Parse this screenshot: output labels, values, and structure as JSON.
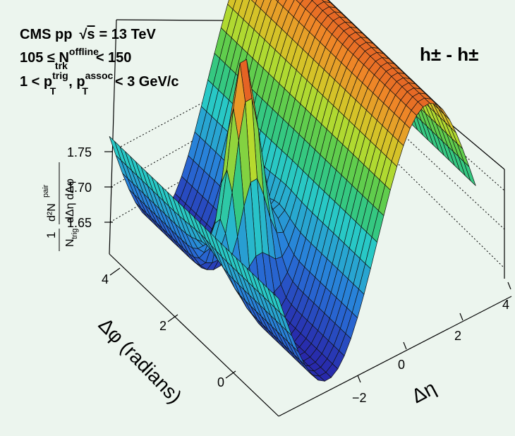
{
  "chart_data": {
    "type": "surface3d",
    "title": "",
    "experiment": "CMS pp",
    "energy": "= 13 TeV",
    "energy_sym": "s",
    "mult": {
      "lhs": "105 ≤ N",
      "sup": "offline",
      "sub": "trk",
      "rhs": "< 150"
    },
    "pt": {
      "lhs": "1 < p",
      "sup1": "trig",
      "sub1": "T",
      "sep": ", p",
      "sup2": "assoc",
      "sub2": "T",
      "rhs": "< 3 GeV/c"
    },
    "pair_label": "h± - h±",
    "zlabel": {
      "one": "1",
      "ntrig": "N",
      "ntrig_sub": "trig",
      "num": "d²N",
      "num_sup": "pair",
      "den": "dΔη dΔφ"
    },
    "xlabel": "Δη",
    "ylabel": "Δφ (radians)",
    "x_ticks": [
      "−2",
      "0",
      "2",
      "4"
    ],
    "y_ticks": [
      "0",
      "2",
      "4"
    ],
    "z_ticks": [
      "1.65",
      "1.70",
      "1.75"
    ],
    "z_range": [
      1.62,
      1.78
    ],
    "x_range": [
      -4,
      4
    ],
    "y_range": [
      -1.5708,
      4.7124
    ],
    "features": {
      "near_side_peak": {
        "eta": 0,
        "phi": 0,
        "height": 1.775
      },
      "away_side_ridge_max": {
        "phi": 3.14,
        "value": 1.76
      },
      "baseline_min": 1.625
    },
    "colors": {
      "background": "#ecf5ee",
      "mesh": "#111111"
    }
  }
}
